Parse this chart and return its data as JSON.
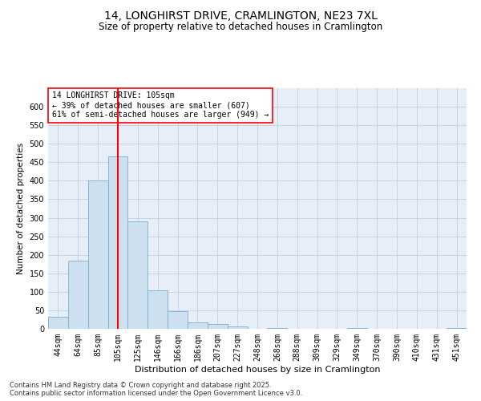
{
  "title": "14, LONGHIRST DRIVE, CRAMLINGTON, NE23 7XL",
  "subtitle": "Size of property relative to detached houses in Cramlington",
  "xlabel": "Distribution of detached houses by size in Cramlington",
  "ylabel": "Number of detached properties",
  "bar_labels": [
    "44sqm",
    "64sqm",
    "85sqm",
    "105sqm",
    "125sqm",
    "146sqm",
    "166sqm",
    "186sqm",
    "207sqm",
    "227sqm",
    "248sqm",
    "268sqm",
    "288sqm",
    "309sqm",
    "329sqm",
    "349sqm",
    "370sqm",
    "390sqm",
    "410sqm",
    "431sqm",
    "451sqm"
  ],
  "bar_values": [
    33,
    185,
    400,
    465,
    290,
    105,
    48,
    18,
    12,
    7,
    0,
    3,
    0,
    0,
    0,
    3,
    0,
    0,
    0,
    0,
    3
  ],
  "bar_color": "#cce0f0",
  "bar_edge_color": "#7aafd4",
  "vline_x": 3,
  "vline_color": "red",
  "annotation_text": "14 LONGHIRST DRIVE: 105sqm\n← 39% of detached houses are smaller (607)\n61% of semi-detached houses are larger (949) →",
  "annotation_box_color": "white",
  "annotation_box_edge_color": "red",
  "ylim": [
    0,
    650
  ],
  "yticks": [
    0,
    50,
    100,
    150,
    200,
    250,
    300,
    350,
    400,
    450,
    500,
    550,
    600
  ],
  "grid_color": "#c0cfe0",
  "bg_color": "#e8eef8",
  "footnote": "Contains HM Land Registry data © Crown copyright and database right 2025.\nContains public sector information licensed under the Open Government Licence v3.0.",
  "title_fontsize": 10,
  "subtitle_fontsize": 8.5,
  "xlabel_fontsize": 8,
  "ylabel_fontsize": 7.5,
  "tick_fontsize": 7,
  "annotation_fontsize": 7,
  "footnote_fontsize": 6
}
